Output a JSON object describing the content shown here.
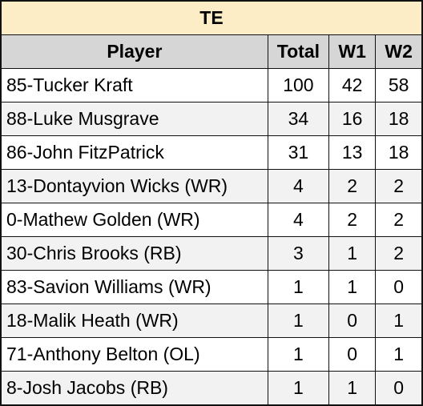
{
  "table": {
    "title": "TE",
    "headers": {
      "player": "Player",
      "total": "Total",
      "w1": "W1",
      "w2": "W2"
    },
    "rows": [
      {
        "player": "85-Tucker Kraft",
        "total": "100",
        "w1": "42",
        "w2": "58"
      },
      {
        "player": "88-Luke Musgrave",
        "total": "34",
        "w1": "16",
        "w2": "18"
      },
      {
        "player": "86-John FitzPatrick",
        "total": "31",
        "w1": "13",
        "w2": "18"
      },
      {
        "player": "13-Dontayvion Wicks (WR)",
        "total": "4",
        "w1": "2",
        "w2": "2"
      },
      {
        "player": "0-Mathew Golden (WR)",
        "total": "4",
        "w1": "2",
        "w2": "2"
      },
      {
        "player": "30-Chris Brooks (RB)",
        "total": "3",
        "w1": "1",
        "w2": "2"
      },
      {
        "player": "83-Savion Williams (WR)",
        "total": "1",
        "w1": "1",
        "w2": "0"
      },
      {
        "player": "18-Malik Heath (WR)",
        "total": "1",
        "w1": "0",
        "w2": "1"
      },
      {
        "player": "71-Anthony Belton (OL)",
        "total": "1",
        "w1": "0",
        "w2": "1"
      },
      {
        "player": "8-Josh Jacobs (RB)",
        "total": "1",
        "w1": "1",
        "w2": "0"
      }
    ]
  },
  "colors": {
    "title_bg": "#fcedc6",
    "header_bg": "#d6d6d6",
    "alt_row_bg": "#f2f2f2",
    "border": "#111111"
  }
}
